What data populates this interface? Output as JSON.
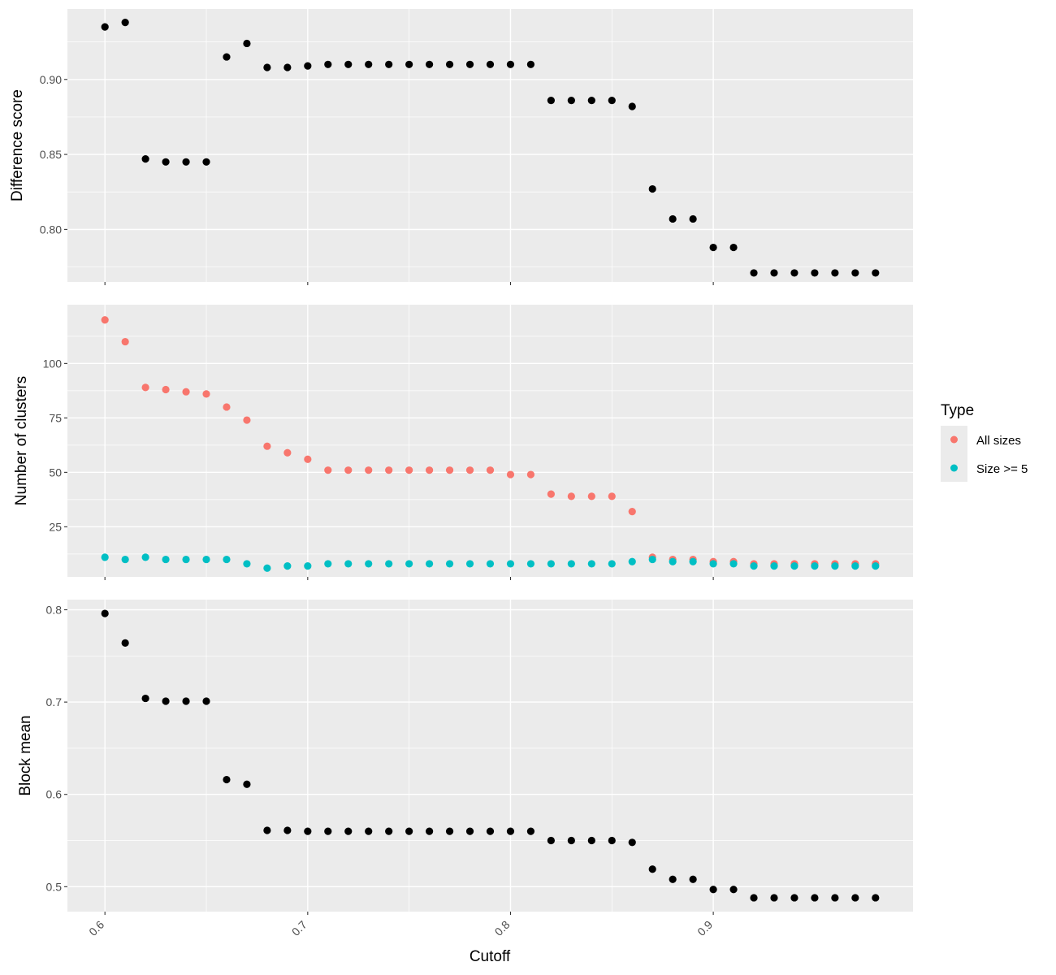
{
  "chart_data": [
    {
      "type": "scatter",
      "panel": "top",
      "ylabel": "Difference score",
      "xlabel": "",
      "ylim": [
        0.765,
        0.947
      ],
      "yticks": [
        0.8,
        0.85,
        0.9
      ],
      "ytick_labels": [
        "0.80",
        "0.85",
        "0.90"
      ],
      "grid": true,
      "series": [
        {
          "color": "#000000",
          "x": [
            0.6,
            0.61,
            0.62,
            0.63,
            0.64,
            0.65,
            0.66,
            0.67,
            0.68,
            0.69,
            0.7,
            0.71,
            0.72,
            0.73,
            0.74,
            0.75,
            0.76,
            0.77,
            0.78,
            0.79,
            0.8,
            0.81,
            0.82,
            0.83,
            0.84,
            0.85,
            0.86,
            0.87,
            0.88,
            0.89,
            0.9,
            0.91,
            0.92,
            0.93,
            0.94,
            0.95,
            0.96,
            0.97,
            0.98
          ],
          "y": [
            0.935,
            0.938,
            0.847,
            0.845,
            0.845,
            0.845,
            0.915,
            0.924,
            0.908,
            0.908,
            0.909,
            0.91,
            0.91,
            0.91,
            0.91,
            0.91,
            0.91,
            0.91,
            0.91,
            0.91,
            0.91,
            0.91,
            0.886,
            0.886,
            0.886,
            0.886,
            0.882,
            0.827,
            0.807,
            0.807,
            0.788,
            0.788,
            0.771,
            0.771,
            0.771,
            0.771,
            0.771,
            0.771,
            0.771
          ]
        }
      ]
    },
    {
      "type": "scatter",
      "panel": "middle",
      "ylabel": "Number of clusters",
      "xlabel": "",
      "ylim": [
        2,
        127
      ],
      "yticks": [
        25,
        50,
        75,
        100
      ],
      "ytick_labels": [
        "25",
        "50",
        "75",
        "100"
      ],
      "grid": true,
      "legend": {
        "title": "Type",
        "position": "right"
      },
      "series": [
        {
          "name": "All sizes",
          "color": "#F8766D",
          "x": [
            0.6,
            0.61,
            0.62,
            0.63,
            0.64,
            0.65,
            0.66,
            0.67,
            0.68,
            0.69,
            0.7,
            0.71,
            0.72,
            0.73,
            0.74,
            0.75,
            0.76,
            0.77,
            0.78,
            0.79,
            0.8,
            0.81,
            0.82,
            0.83,
            0.84,
            0.85,
            0.86,
            0.87,
            0.88,
            0.89,
            0.9,
            0.91,
            0.92,
            0.93,
            0.94,
            0.95,
            0.96,
            0.97,
            0.98
          ],
          "y": [
            120,
            110,
            89,
            88,
            87,
            86,
            80,
            74,
            62,
            59,
            56,
            51,
            51,
            51,
            51,
            51,
            51,
            51,
            51,
            51,
            49,
            49,
            40,
            39,
            39,
            39,
            32,
            11,
            10,
            10,
            9,
            9,
            8,
            8,
            8,
            8,
            8,
            8,
            8
          ]
        },
        {
          "name": "Size >= 5",
          "color": "#00BFC4",
          "x": [
            0.6,
            0.61,
            0.62,
            0.63,
            0.64,
            0.65,
            0.66,
            0.67,
            0.68,
            0.69,
            0.7,
            0.71,
            0.72,
            0.73,
            0.74,
            0.75,
            0.76,
            0.77,
            0.78,
            0.79,
            0.8,
            0.81,
            0.82,
            0.83,
            0.84,
            0.85,
            0.86,
            0.87,
            0.88,
            0.89,
            0.9,
            0.91,
            0.92,
            0.93,
            0.94,
            0.95,
            0.96,
            0.97,
            0.98
          ],
          "y": [
            11,
            10,
            11,
            10,
            10,
            10,
            10,
            8,
            6,
            7,
            7,
            8,
            8,
            8,
            8,
            8,
            8,
            8,
            8,
            8,
            8,
            8,
            8,
            8,
            8,
            8,
            9,
            10,
            9,
            9,
            8,
            8,
            7,
            7,
            7,
            7,
            7,
            7,
            7
          ]
        }
      ]
    },
    {
      "type": "scatter",
      "panel": "bottom",
      "ylabel": "Block mean",
      "xlabel": "Cutoff",
      "ylim": [
        0.473,
        0.811
      ],
      "yticks": [
        0.5,
        0.6,
        0.7,
        0.8
      ],
      "ytick_labels": [
        "0.5",
        "0.6",
        "0.7",
        "0.8"
      ],
      "grid": true,
      "series": [
        {
          "color": "#000000",
          "x": [
            0.6,
            0.61,
            0.62,
            0.63,
            0.64,
            0.65,
            0.66,
            0.67,
            0.68,
            0.69,
            0.7,
            0.71,
            0.72,
            0.73,
            0.74,
            0.75,
            0.76,
            0.77,
            0.78,
            0.79,
            0.8,
            0.81,
            0.82,
            0.83,
            0.84,
            0.85,
            0.86,
            0.87,
            0.88,
            0.89,
            0.9,
            0.91,
            0.92,
            0.93,
            0.94,
            0.95,
            0.96,
            0.97,
            0.98
          ],
          "y": [
            0.796,
            0.764,
            0.704,
            0.701,
            0.701,
            0.701,
            0.616,
            0.611,
            0.561,
            0.561,
            0.56,
            0.56,
            0.56,
            0.56,
            0.56,
            0.56,
            0.56,
            0.56,
            0.56,
            0.56,
            0.56,
            0.56,
            0.55,
            0.55,
            0.55,
            0.55,
            0.548,
            0.519,
            0.508,
            0.508,
            0.497,
            0.497,
            0.488,
            0.488,
            0.488,
            0.488,
            0.488,
            0.488,
            0.488
          ]
        }
      ]
    }
  ],
  "x_axis": {
    "label": "Cutoff",
    "range": [
      0.5815,
      0.9985
    ],
    "ticks": [
      0.6,
      0.7,
      0.8,
      0.9
    ],
    "tick_labels": [
      "0.6",
      "0.7",
      "0.8",
      "0.9"
    ]
  },
  "legend": {
    "title": "Type",
    "items": [
      {
        "label": "All sizes",
        "color": "#F8766D"
      },
      {
        "label": "Size >= 5",
        "color": "#00BFC4"
      }
    ]
  }
}
